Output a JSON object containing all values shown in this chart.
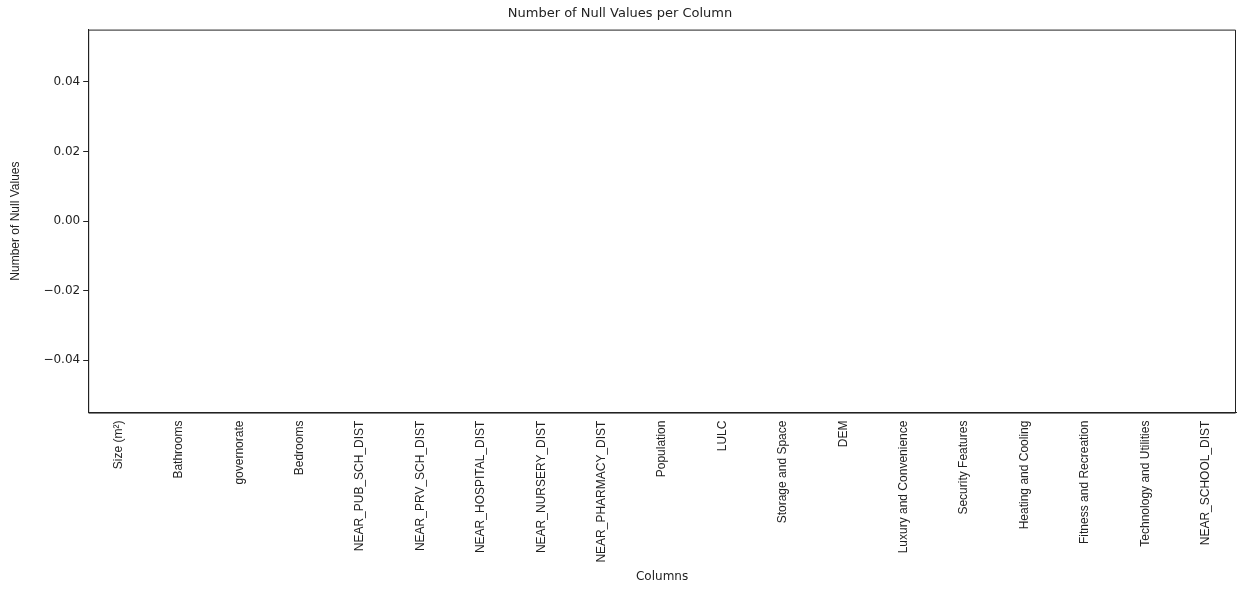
{
  "chart_data": {
    "type": "bar",
    "title": "Number of Null Values per Column",
    "xlabel": "Columns",
    "ylabel": "Number of Null Values",
    "categories": [
      "Size (m²)",
      "Bathrooms",
      "governorate",
      "Bedrooms",
      "NEAR_PUB_SCH_DIST",
      "NEAR_PRV_SCH_DIST",
      "NEAR_HOSPITAL_DIST",
      "NEAR_NURSERY_DIST",
      "NEAR_PHARMACY_DIST",
      "Population",
      "LULC",
      "Storage and Space",
      "DEM",
      "Luxury and Convenience",
      "Security Features",
      "Heating and Cooling",
      "Fitness and Recreation",
      "Technology and Utilities",
      "NEAR_SCHOOL_DIST"
    ],
    "values": [
      0,
      0,
      0,
      0,
      0,
      0,
      0,
      0,
      0,
      0,
      0,
      0,
      0,
      0,
      0,
      0,
      0,
      0,
      0
    ],
    "ylim": [
      -0.055,
      0.055
    ],
    "yticks": [
      {
        "value": -0.04,
        "label": "−0.04"
      },
      {
        "value": -0.02,
        "label": "−0.02"
      },
      {
        "value": 0,
        "label": "0.00"
      },
      {
        "value": 0.02,
        "label": "0.02"
      },
      {
        "value": 0.04,
        "label": "0.04"
      }
    ],
    "grid": false,
    "legend": false
  }
}
